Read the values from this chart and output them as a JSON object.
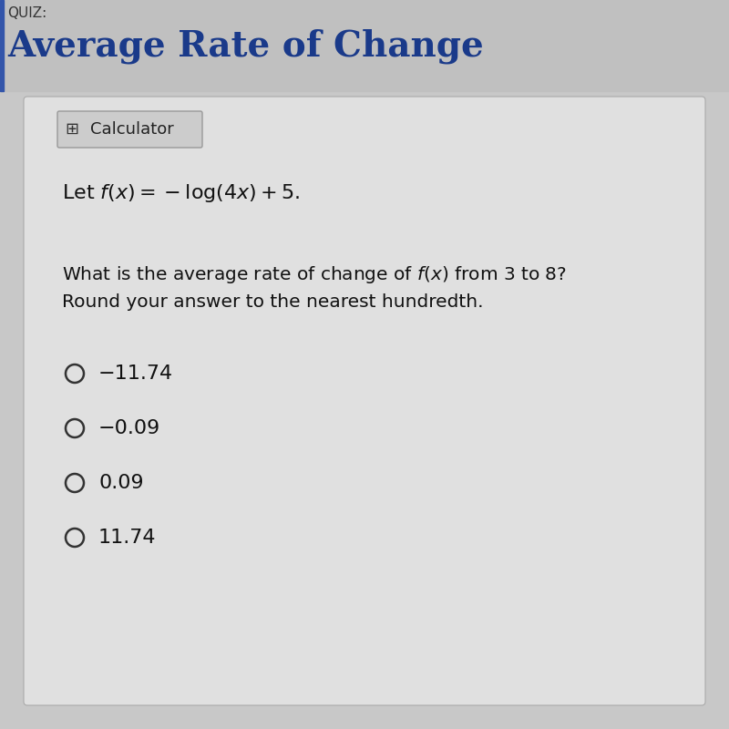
{
  "quiz_label": "QUIZ:",
  "title": "Average Rate of Change",
  "title_color": "#1a3a8a",
  "quiz_label_color": "#333333",
  "bg_color": "#c8c8c8",
  "card_color": "#e0e0e0",
  "calculator_icon": "Calculator",
  "equation_text": "Let $f(x) = -\\log(4x) + 5.$",
  "question_line1": "What is the average rate of change of $f(x)$ from 3 to 8?",
  "question_line2": "Round your answer to the nearest hundredth.",
  "choices_display": [
    "-11.74",
    "-0.09",
    "0.09",
    "11.74"
  ]
}
